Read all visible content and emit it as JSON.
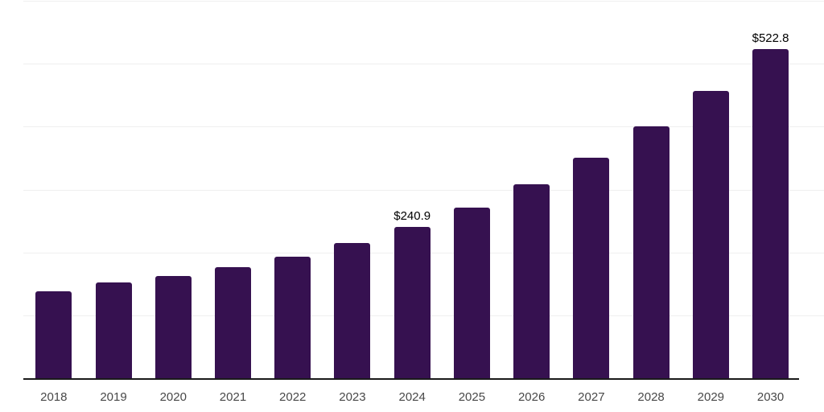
{
  "chart_data": {
    "type": "bar",
    "title": "",
    "xlabel": "",
    "ylabel": "",
    "categories": [
      "2018",
      "2019",
      "2020",
      "2021",
      "2022",
      "2023",
      "2024",
      "2025",
      "2026",
      "2027",
      "2028",
      "2029",
      "2030"
    ],
    "values": [
      138,
      153,
      163,
      177,
      193,
      215,
      240.9,
      271,
      308,
      350,
      400,
      457,
      522.8
    ],
    "data_labels": [
      "",
      "",
      "",
      "",
      "",
      "",
      "$240.9",
      "",
      "",
      "",
      "",
      "",
      "$522.8"
    ],
    "value_prefix": "$",
    "ylim": [
      0,
      600
    ],
    "gridline_values": [
      100,
      200,
      300,
      400,
      500,
      600
    ],
    "grid": "horizontal",
    "legend": "none",
    "colors": {
      "bar": "#361150",
      "gridline": "#efefef",
      "axis_line": "#1a1a1a",
      "tick_label": "#484848",
      "data_label": "#000000",
      "background": "#ffffff"
    }
  }
}
